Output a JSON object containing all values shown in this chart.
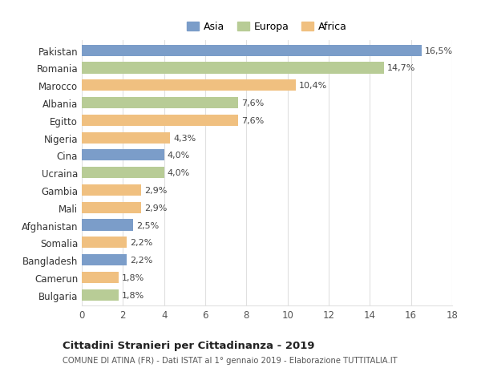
{
  "categories": [
    "Pakistan",
    "Romania",
    "Marocco",
    "Albania",
    "Egitto",
    "Nigeria",
    "Cina",
    "Ucraina",
    "Gambia",
    "Mali",
    "Afghanistan",
    "Somalia",
    "Bangladesh",
    "Camerun",
    "Bulgaria"
  ],
  "values": [
    16.5,
    14.7,
    10.4,
    7.6,
    7.6,
    4.3,
    4.0,
    4.0,
    2.9,
    2.9,
    2.5,
    2.2,
    2.2,
    1.8,
    1.8
  ],
  "labels": [
    "16,5%",
    "14,7%",
    "10,4%",
    "7,6%",
    "7,6%",
    "4,3%",
    "4,0%",
    "4,0%",
    "2,9%",
    "2,9%",
    "2,5%",
    "2,2%",
    "2,2%",
    "1,8%",
    "1,8%"
  ],
  "continents": [
    "Asia",
    "Europa",
    "Africa",
    "Europa",
    "Africa",
    "Africa",
    "Asia",
    "Europa",
    "Africa",
    "Africa",
    "Asia",
    "Africa",
    "Asia",
    "Africa",
    "Europa"
  ],
  "colors": {
    "Asia": "#7b9dc9",
    "Europa": "#b8cc96",
    "Africa": "#f0c080"
  },
  "legend": [
    "Asia",
    "Europa",
    "Africa"
  ],
  "xlim": [
    0,
    18
  ],
  "xticks": [
    0,
    2,
    4,
    6,
    8,
    10,
    12,
    14,
    16,
    18
  ],
  "title": "Cittadini Stranieri per Cittadinanza - 2019",
  "subtitle": "COMUNE DI ATINA (FR) - Dati ISTAT al 1° gennaio 2019 - Elaborazione TUTTITALIA.IT",
  "background_color": "#ffffff",
  "grid_color": "#e0e0e0"
}
